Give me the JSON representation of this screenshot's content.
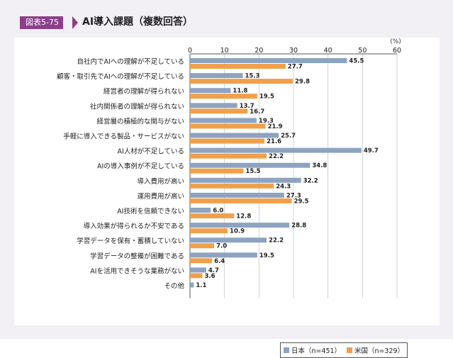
{
  "figure": {
    "badge": "図表5-75",
    "title": "AI導入課題（複数回答）"
  },
  "colors": {
    "japan": "#8da3c2",
    "usa": "#f0a04b",
    "badge": "#8b3f8b",
    "frame": "#f2eff5"
  },
  "chart_data": {
    "type": "bar",
    "orientation": "horizontal",
    "unit_label": "(%)",
    "xlim": [
      0,
      60
    ],
    "xticks": [
      0,
      10,
      20,
      30,
      40,
      50,
      60
    ],
    "grid": true,
    "legend_position": "bottom-right",
    "categories": [
      "自社内でAIへの理解が不足している",
      "顧客・取引先でAIへの理解が不足している",
      "経営者の理解が得られない",
      "社内関係者の理解が得られない",
      "経営層の積極的な関与がない",
      "手軽に導入できる製品・サービスがない",
      "AI人材が不足している",
      "AIの導入事例が不足している",
      "導入費用が高い",
      "運用費用が高い",
      "AI技術を信頼できない",
      "導入効果が得られるか不安である",
      "学習データを保有・蓄積していない",
      "学習データの整備が困難である",
      "AIを活用できそうな業務がない",
      "その他"
    ],
    "series": [
      {
        "name": "日本（n=451）",
        "values": [
          45.5,
          15.3,
          11.8,
          13.7,
          19.3,
          25.7,
          49.7,
          34.8,
          32.2,
          27.3,
          6.0,
          28.8,
          22.2,
          19.5,
          4.7,
          1.1
        ],
        "labels": [
          "45.5",
          "15.3",
          "11.8",
          "13.7",
          "19.3",
          "25.7",
          "49.7",
          "34.8",
          "32.2",
          "27.3",
          "6.0",
          "28.8",
          "22.2",
          "19.5",
          "4.7",
          "1.1"
        ]
      },
      {
        "name": "米国（n=329）",
        "values": [
          27.7,
          29.8,
          19.5,
          16.7,
          21.9,
          21.6,
          22.2,
          15.5,
          24.3,
          29.5,
          12.8,
          10.9,
          7.0,
          6.4,
          3.6,
          null
        ],
        "labels": [
          "27.7",
          "29.8",
          "19.5",
          "16.7",
          "21.9",
          "21.6",
          "22.2",
          "15.5",
          "24.3",
          "29.5",
          "12.8",
          "10.9",
          "7.0",
          "6.4",
          "3.6",
          ""
        ]
      }
    ]
  }
}
